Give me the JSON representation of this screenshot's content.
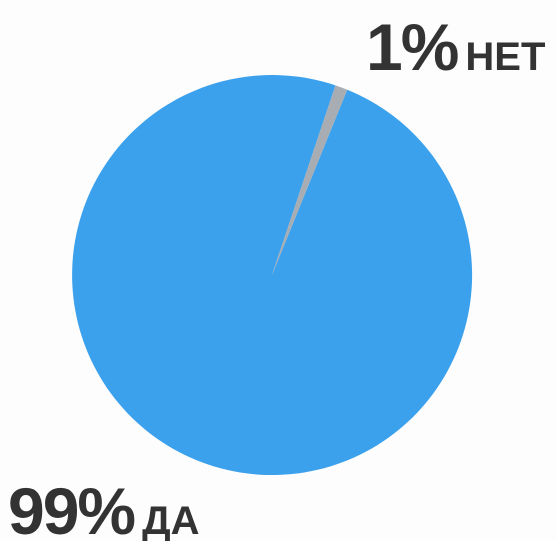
{
  "chart_data": {
    "type": "pie",
    "slices": [
      {
        "label": "ДА",
        "percent_text": "99%",
        "value": 99,
        "color": "#3ba1ec"
      },
      {
        "label": "НЕТ",
        "percent_text": "1%",
        "value": 1,
        "color": "#a8adb3"
      }
    ]
  }
}
